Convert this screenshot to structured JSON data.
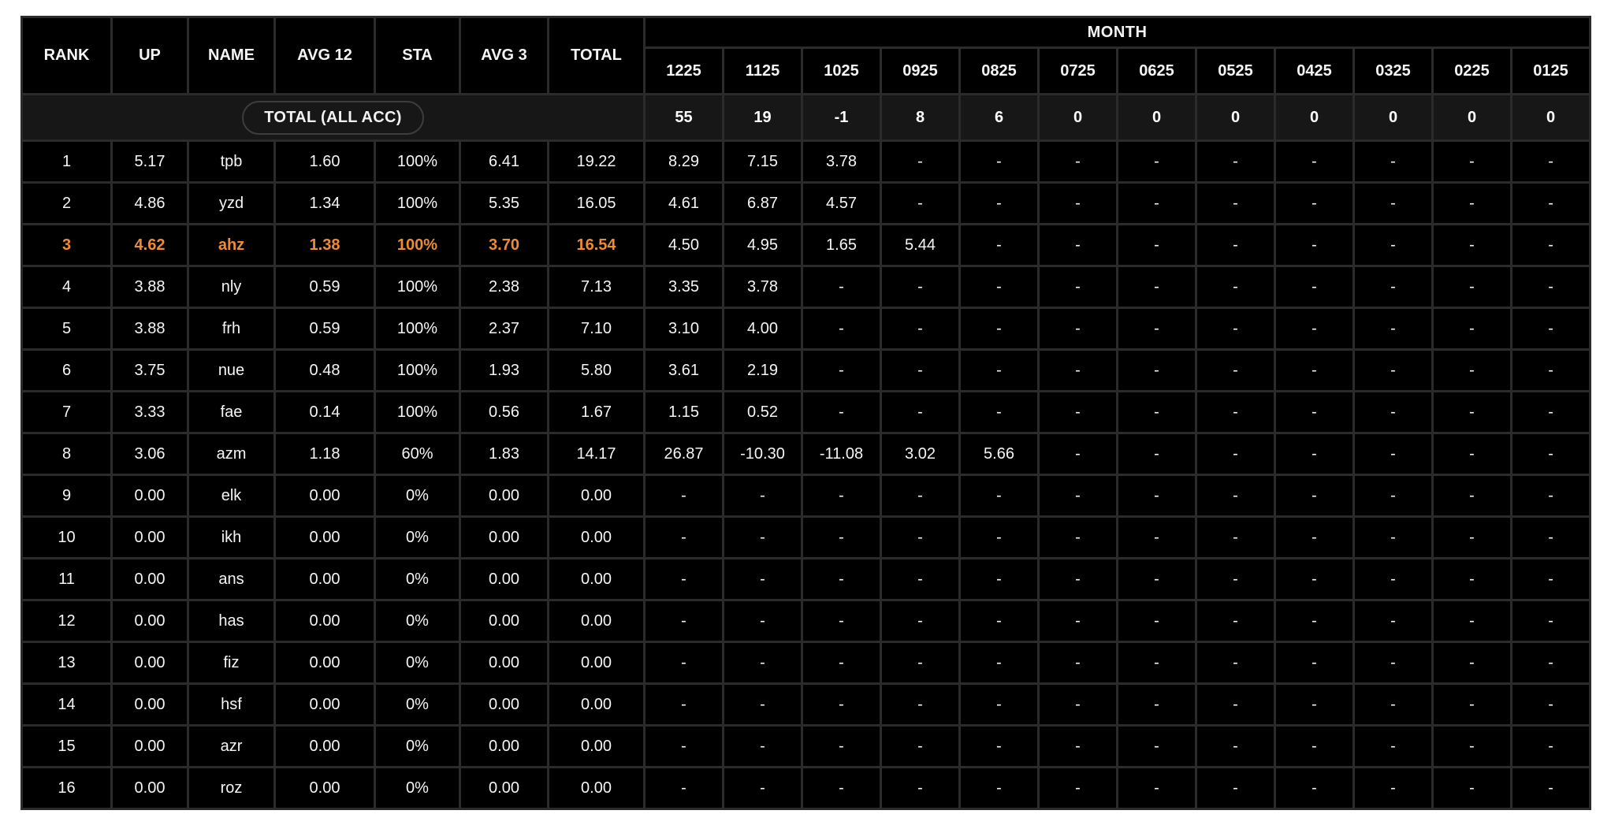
{
  "table": {
    "month_group_label": "MONTH",
    "columns": [
      "RANK",
      "UP",
      "NAME",
      "AVG 12",
      "STA",
      "AVG 3",
      "TOTAL"
    ],
    "month_columns": [
      "1225",
      "1125",
      "1025",
      "0925",
      "0825",
      "0725",
      "0625",
      "0525",
      "0425",
      "0325",
      "0225",
      "0125"
    ],
    "total_row": {
      "label": "TOTAL (ALL ACC)",
      "months": [
        "55",
        "19",
        "-1",
        "8",
        "6",
        "0",
        "0",
        "0",
        "0",
        "0",
        "0",
        "0"
      ]
    },
    "rows": [
      {
        "cells": [
          "1",
          "5.17",
          "tpb",
          "1.60",
          "100%",
          "6.41",
          "19.22"
        ],
        "months": [
          "8.29",
          "7.15",
          "3.78",
          "-",
          "-",
          "-",
          "-",
          "-",
          "-",
          "-",
          "-",
          "-"
        ],
        "highlight": false
      },
      {
        "cells": [
          "2",
          "4.86",
          "yzd",
          "1.34",
          "100%",
          "5.35",
          "16.05"
        ],
        "months": [
          "4.61",
          "6.87",
          "4.57",
          "-",
          "-",
          "-",
          "-",
          "-",
          "-",
          "-",
          "-",
          "-"
        ],
        "highlight": false
      },
      {
        "cells": [
          "3",
          "4.62",
          "ahz",
          "1.38",
          "100%",
          "3.70",
          "16.54"
        ],
        "months": [
          "4.50",
          "4.95",
          "1.65",
          "5.44",
          "-",
          "-",
          "-",
          "-",
          "-",
          "-",
          "-",
          "-"
        ],
        "highlight": true
      },
      {
        "cells": [
          "4",
          "3.88",
          "nly",
          "0.59",
          "100%",
          "2.38",
          "7.13"
        ],
        "months": [
          "3.35",
          "3.78",
          "-",
          "-",
          "-",
          "-",
          "-",
          "-",
          "-",
          "-",
          "-",
          "-"
        ],
        "highlight": false
      },
      {
        "cells": [
          "5",
          "3.88",
          "frh",
          "0.59",
          "100%",
          "2.37",
          "7.10"
        ],
        "months": [
          "3.10",
          "4.00",
          "-",
          "-",
          "-",
          "-",
          "-",
          "-",
          "-",
          "-",
          "-",
          "-"
        ],
        "highlight": false
      },
      {
        "cells": [
          "6",
          "3.75",
          "nue",
          "0.48",
          "100%",
          "1.93",
          "5.80"
        ],
        "months": [
          "3.61",
          "2.19",
          "-",
          "-",
          "-",
          "-",
          "-",
          "-",
          "-",
          "-",
          "-",
          "-"
        ],
        "highlight": false
      },
      {
        "cells": [
          "7",
          "3.33",
          "fae",
          "0.14",
          "100%",
          "0.56",
          "1.67"
        ],
        "months": [
          "1.15",
          "0.52",
          "-",
          "-",
          "-",
          "-",
          "-",
          "-",
          "-",
          "-",
          "-",
          "-"
        ],
        "highlight": false
      },
      {
        "cells": [
          "8",
          "3.06",
          "azm",
          "1.18",
          "60%",
          "1.83",
          "14.17"
        ],
        "months": [
          "26.87",
          "-10.30",
          "-11.08",
          "3.02",
          "5.66",
          "-",
          "-",
          "-",
          "-",
          "-",
          "-",
          "-"
        ],
        "highlight": false
      },
      {
        "cells": [
          "9",
          "0.00",
          "elk",
          "0.00",
          "0%",
          "0.00",
          "0.00"
        ],
        "months": [
          "-",
          "-",
          "-",
          "-",
          "-",
          "-",
          "-",
          "-",
          "-",
          "-",
          "-",
          "-"
        ],
        "highlight": false
      },
      {
        "cells": [
          "10",
          "0.00",
          "ikh",
          "0.00",
          "0%",
          "0.00",
          "0.00"
        ],
        "months": [
          "-",
          "-",
          "-",
          "-",
          "-",
          "-",
          "-",
          "-",
          "-",
          "-",
          "-",
          "-"
        ],
        "highlight": false
      },
      {
        "cells": [
          "11",
          "0.00",
          "ans",
          "0.00",
          "0%",
          "0.00",
          "0.00"
        ],
        "months": [
          "-",
          "-",
          "-",
          "-",
          "-",
          "-",
          "-",
          "-",
          "-",
          "-",
          "-",
          "-"
        ],
        "highlight": false
      },
      {
        "cells": [
          "12",
          "0.00",
          "has",
          "0.00",
          "0%",
          "0.00",
          "0.00"
        ],
        "months": [
          "-",
          "-",
          "-",
          "-",
          "-",
          "-",
          "-",
          "-",
          "-",
          "-",
          "-",
          "-"
        ],
        "highlight": false
      },
      {
        "cells": [
          "13",
          "0.00",
          "fiz",
          "0.00",
          "0%",
          "0.00",
          "0.00"
        ],
        "months": [
          "-",
          "-",
          "-",
          "-",
          "-",
          "-",
          "-",
          "-",
          "-",
          "-",
          "-",
          "-"
        ],
        "highlight": false
      },
      {
        "cells": [
          "14",
          "0.00",
          "hsf",
          "0.00",
          "0%",
          "0.00",
          "0.00"
        ],
        "months": [
          "-",
          "-",
          "-",
          "-",
          "-",
          "-",
          "-",
          "-",
          "-",
          "-",
          "-",
          "-"
        ],
        "highlight": false
      },
      {
        "cells": [
          "15",
          "0.00",
          "azr",
          "0.00",
          "0%",
          "0.00",
          "0.00"
        ],
        "months": [
          "-",
          "-",
          "-",
          "-",
          "-",
          "-",
          "-",
          "-",
          "-",
          "-",
          "-",
          "-"
        ],
        "highlight": false
      },
      {
        "cells": [
          "16",
          "0.00",
          "roz",
          "0.00",
          "0%",
          "0.00",
          "0.00"
        ],
        "months": [
          "-",
          "-",
          "-",
          "-",
          "-",
          "-",
          "-",
          "-",
          "-",
          "-",
          "-",
          "-"
        ],
        "highlight": false
      }
    ],
    "colors": {
      "cell_background": "#000000",
      "grid_line": "#2b2b2b",
      "total_row_background": "#171717",
      "month_value_yellow": "#e9dc3d",
      "highlight_orange": "#ee8b35",
      "text_white": "#f5f5f5"
    }
  }
}
